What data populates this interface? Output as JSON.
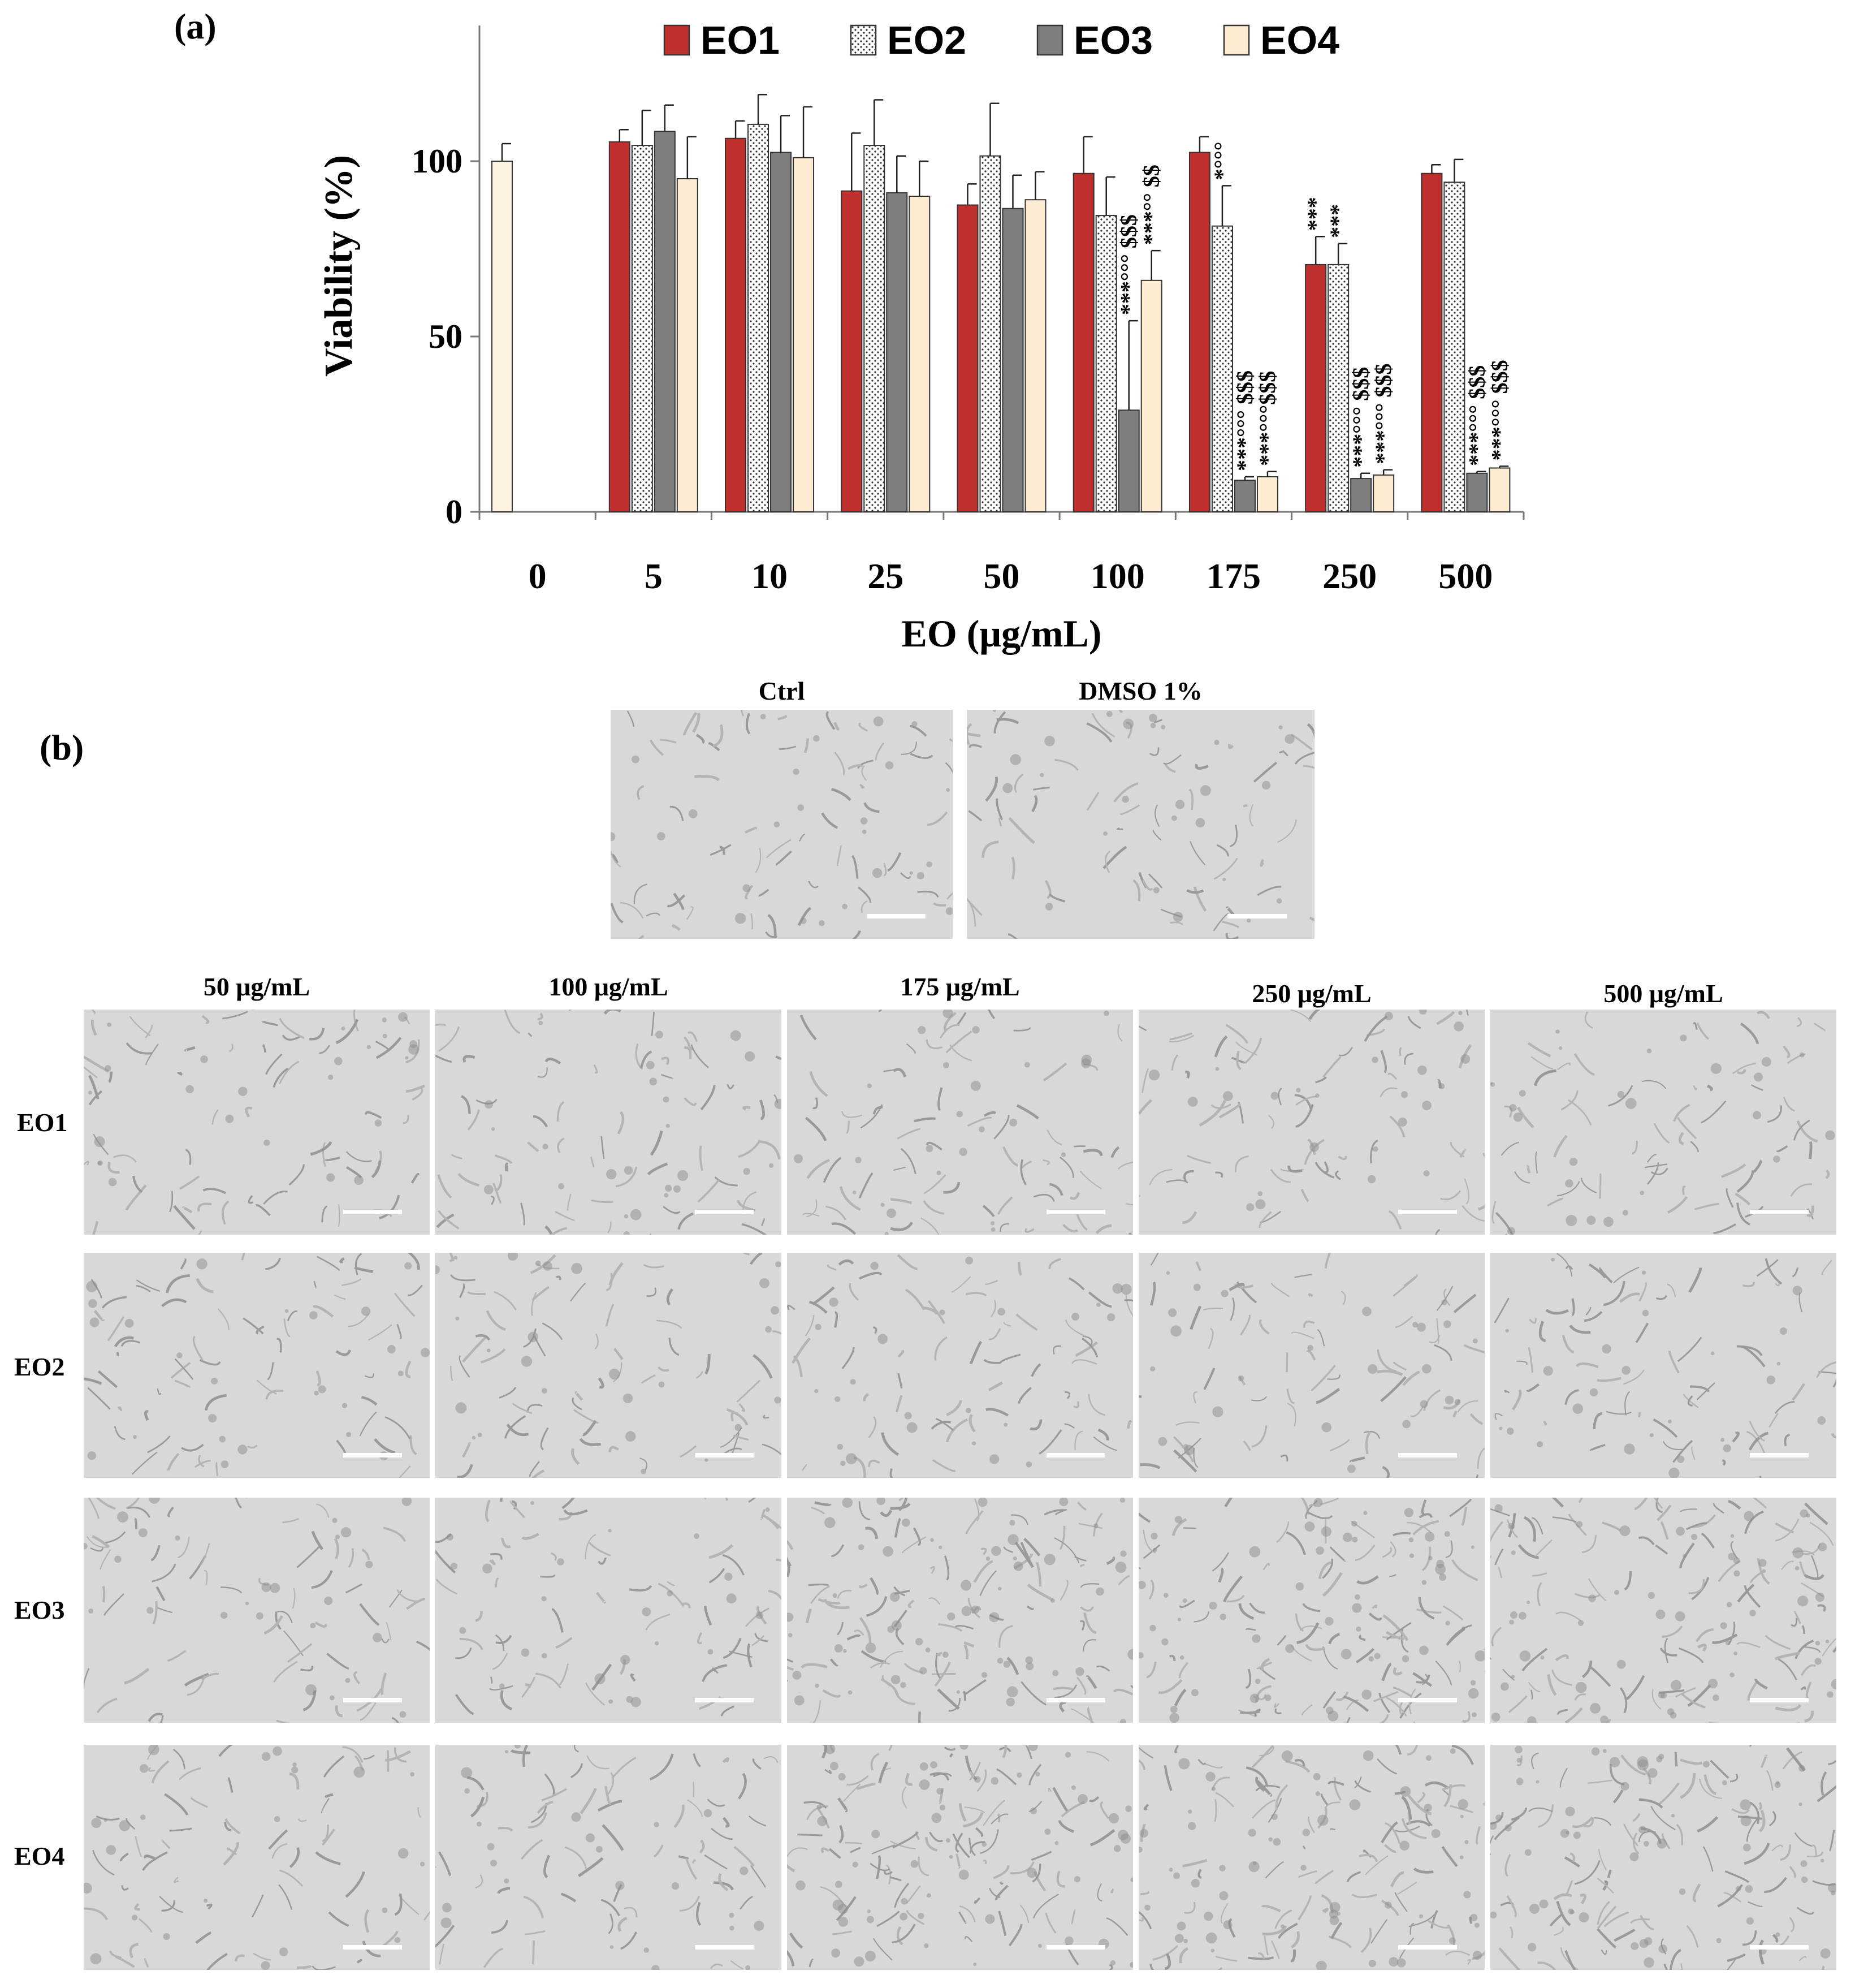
{
  "panel_labels": {
    "a": "(a)",
    "b": "(b)"
  },
  "colors": {
    "EO1": "#c0302e",
    "EO2": "#f2f2f2",
    "EO3": "#7f7f7f",
    "EO4": "#fdebd2",
    "ctrl": "#fdf2e0"
  },
  "chart_data": {
    "type": "bar",
    "xlabel": "EO (μg/mL)",
    "ylabel": "Viability (%)",
    "ylim": [
      0,
      140
    ],
    "yticks": [
      0,
      50,
      100
    ],
    "categories": [
      "0",
      "5",
      "10",
      "25",
      "50",
      "100",
      "175",
      "250",
      "500"
    ],
    "legend": {
      "placement": "top",
      "entries": [
        "EO1",
        "EO2",
        "EO3",
        "EO4"
      ]
    },
    "control": {
      "category": "0",
      "value": 100,
      "error": 5
    },
    "series": [
      {
        "name": "EO1",
        "pattern": "solid-red",
        "values": [
          null,
          105.5,
          106.5,
          91.5,
          87.5,
          96.5,
          102.5,
          70.5,
          96.5
        ],
        "errors": [
          null,
          3.5,
          5,
          16.5,
          6,
          10.5,
          4.5,
          8,
          2.5
        ]
      },
      {
        "name": "EO2",
        "pattern": "dotted",
        "values": [
          null,
          104.5,
          110.5,
          104.5,
          101.5,
          84.5,
          81.5,
          70.5,
          94
        ],
        "errors": [
          null,
          10,
          8.5,
          13,
          15,
          11,
          11.5,
          6,
          6.5
        ]
      },
      {
        "name": "EO3",
        "pattern": "solid-gray",
        "values": [
          null,
          108.5,
          102.5,
          91,
          86.5,
          29,
          9,
          9.5,
          11
        ],
        "errors": [
          null,
          7.5,
          10.5,
          10.5,
          9.5,
          25.5,
          1,
          1.5,
          0.5
        ]
      },
      {
        "name": "EO4",
        "pattern": "solid-cream",
        "values": [
          null,
          95,
          101,
          90,
          89,
          66,
          10,
          10.5,
          12.5
        ],
        "errors": [
          null,
          12,
          14.5,
          10,
          8,
          8.5,
          1.5,
          1.5,
          0.5
        ]
      }
    ],
    "annotations": [
      {
        "category": "100",
        "series": "EO3",
        "text": "***°°° $$$"
      },
      {
        "category": "100",
        "series": "EO4",
        "text": "***°° $$"
      },
      {
        "category": "175",
        "series": "EO2",
        "text": "*°°°"
      },
      {
        "category": "175",
        "series": "EO3",
        "text": "***°°° $$$"
      },
      {
        "category": "175",
        "series": "EO4",
        "text": "***°°°$$$"
      },
      {
        "category": "250",
        "series": "EO1",
        "text": "***"
      },
      {
        "category": "250",
        "series": "EO2",
        "text": "***"
      },
      {
        "category": "250",
        "series": "EO3",
        "text": "***°°° $$$"
      },
      {
        "category": "250",
        "series": "EO4",
        "text": "***°°° $$$"
      },
      {
        "category": "500",
        "series": "EO3",
        "text": "***°°° $$$"
      },
      {
        "category": "500",
        "series": "EO4",
        "text": "***°°° $$$"
      }
    ]
  },
  "panel_b": {
    "top_titles": [
      "Ctrl",
      "DMSO 1%"
    ],
    "column_titles": [
      "50 μg/mL",
      "100 μg/mL",
      "175 μg/mL",
      "250 μg/mL",
      "500 μg/mL"
    ],
    "row_labels": [
      "EO1",
      "EO2",
      "EO3",
      "EO4"
    ]
  }
}
